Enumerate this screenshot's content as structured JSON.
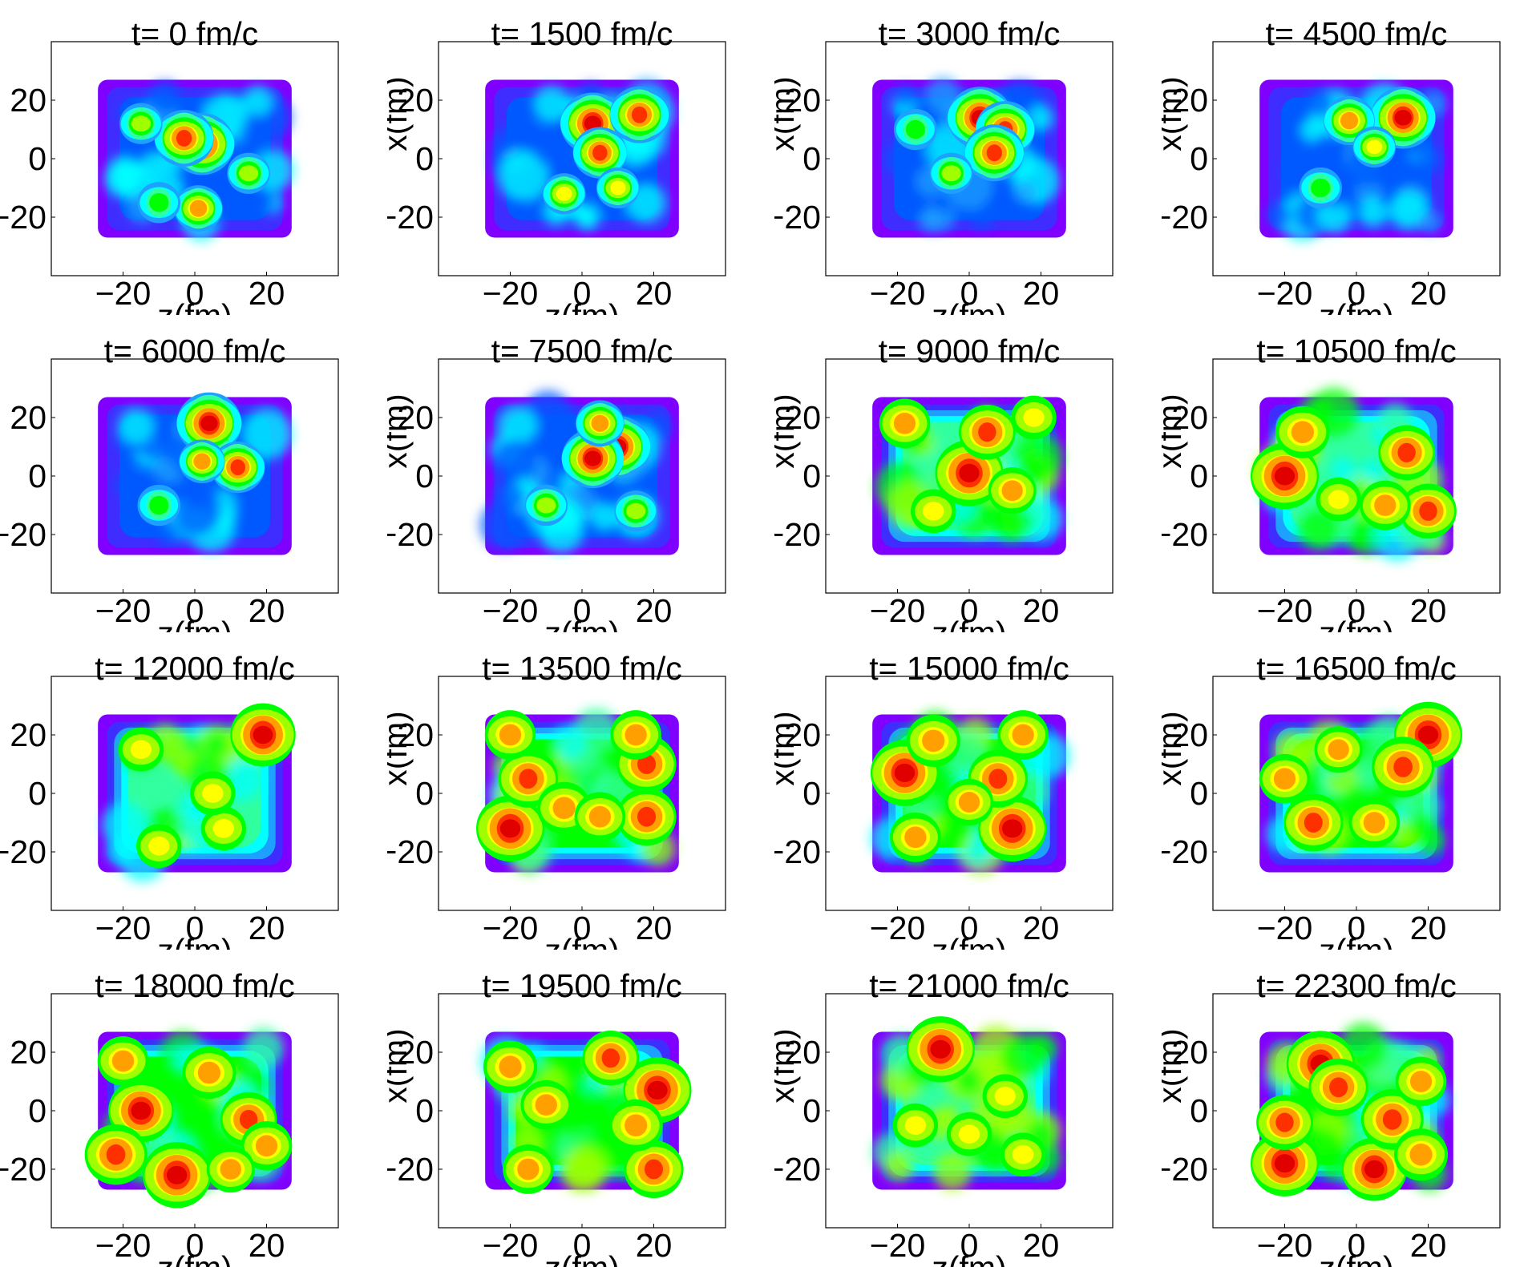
{
  "chart_data": [
    {
      "type": "heatmap",
      "title": "t= 0 fm/c",
      "xlabel": "z(fm)",
      "ylabel": "",
      "xlim": [
        -40,
        40
      ],
      "ylim": [
        -40,
        40
      ],
      "xticks": [
        "−20",
        "0",
        "20"
      ],
      "yticks": [
        "20",
        "0",
        "−20"
      ],
      "hotspots": [
        {
          "x": 2,
          "y": 5,
          "v": 1.0
        },
        {
          "x": -3,
          "y": 7,
          "v": 0.9
        },
        {
          "x": 1,
          "y": -17,
          "v": 0.7
        },
        {
          "x": -15,
          "y": 12,
          "v": 0.4
        },
        {
          "x": 15,
          "y": -5,
          "v": 0.4
        },
        {
          "x": -10,
          "y": -15,
          "v": 0.35
        }
      ]
    },
    {
      "type": "heatmap",
      "title": "t= 1500 fm/c",
      "xlabel": "z(fm)",
      "ylabel": "x(fm)",
      "xlim": [
        -40,
        40
      ],
      "ylim": [
        -40,
        40
      ],
      "xticks": [
        "−20",
        "0",
        "20"
      ],
      "yticks": [
        "20",
        "0",
        "−20"
      ],
      "hotspots": [
        {
          "x": 3,
          "y": 12,
          "v": 1.0
        },
        {
          "x": 16,
          "y": 15,
          "v": 0.9
        },
        {
          "x": 5,
          "y": 2,
          "v": 0.8
        },
        {
          "x": 10,
          "y": -10,
          "v": 0.6
        },
        {
          "x": -5,
          "y": -12,
          "v": 0.5
        }
      ]
    },
    {
      "type": "heatmap",
      "title": "t= 3000 fm/c",
      "xlabel": "z(fm)",
      "ylabel": "x(fm)",
      "xlim": [
        -40,
        40
      ],
      "ylim": [
        -40,
        40
      ],
      "xticks": [
        "−20",
        "0",
        "20"
      ],
      "yticks": [
        "20",
        "0",
        "−20"
      ],
      "hotspots": [
        {
          "x": 3,
          "y": 14,
          "v": 1.0
        },
        {
          "x": 10,
          "y": 10,
          "v": 0.9
        },
        {
          "x": 7,
          "y": 2,
          "v": 0.9
        },
        {
          "x": -5,
          "y": -5,
          "v": 0.45
        },
        {
          "x": -15,
          "y": 10,
          "v": 0.35
        }
      ]
    },
    {
      "type": "heatmap",
      "title": "t= 4500 fm/c",
      "xlabel": "z(fm)",
      "ylabel": "x(fm)",
      "xlim": [
        -40,
        40
      ],
      "ylim": [
        -40,
        40
      ],
      "xticks": [
        "−20",
        "0",
        "20"
      ],
      "yticks": [
        "20",
        "0",
        "−20"
      ],
      "hotspots": [
        {
          "x": 13,
          "y": 14,
          "v": 1.0
        },
        {
          "x": -2,
          "y": 13,
          "v": 0.75
        },
        {
          "x": 5,
          "y": 4,
          "v": 0.55
        },
        {
          "x": -10,
          "y": -10,
          "v": 0.3
        }
      ]
    },
    {
      "type": "heatmap",
      "title": "t= 6000 fm/c",
      "xlabel": "z(fm)",
      "ylabel": "",
      "xlim": [
        -40,
        40
      ],
      "ylim": [
        -40,
        40
      ],
      "xticks": [
        "−20",
        "0",
        "20"
      ],
      "yticks": [
        "20",
        "0",
        "−20"
      ],
      "hotspots": [
        {
          "x": 4,
          "y": 18,
          "v": 1.0
        },
        {
          "x": 12,
          "y": 3,
          "v": 0.8
        },
        {
          "x": 2,
          "y": 5,
          "v": 0.65
        },
        {
          "x": -10,
          "y": -10,
          "v": 0.3
        }
      ]
    },
    {
      "type": "heatmap",
      "title": "t= 7500 fm/c",
      "xlabel": "z(fm)",
      "ylabel": "x(fm)",
      "xlim": [
        -40,
        40
      ],
      "ylim": [
        -40,
        40
      ],
      "xticks": [
        "−20",
        "0",
        "20"
      ],
      "yticks": [
        "20",
        "0",
        "−20"
      ],
      "hotspots": [
        {
          "x": 10,
          "y": 10,
          "v": 1.0
        },
        {
          "x": 3,
          "y": 6,
          "v": 0.95
        },
        {
          "x": 5,
          "y": 18,
          "v": 0.7
        },
        {
          "x": -10,
          "y": -10,
          "v": 0.4
        },
        {
          "x": 15,
          "y": -12,
          "v": 0.45
        }
      ]
    },
    {
      "type": "heatmap",
      "title": "t= 9000 fm/c",
      "xlabel": "z(fm)",
      "ylabel": "x(fm)",
      "xlim": [
        -40,
        40
      ],
      "ylim": [
        -40,
        40
      ],
      "xticks": [
        "−20",
        "0",
        "20"
      ],
      "yticks": [
        "20",
        "0",
        "−20"
      ],
      "hotspots": [
        {
          "x": 0,
          "y": 1,
          "v": 1.0
        },
        {
          "x": 5,
          "y": 15,
          "v": 0.8
        },
        {
          "x": -18,
          "y": 18,
          "v": 0.7
        },
        {
          "x": 12,
          "y": -5,
          "v": 0.65
        },
        {
          "x": -10,
          "y": -12,
          "v": 0.6
        },
        {
          "x": 18,
          "y": 20,
          "v": 0.6
        }
      ]
    },
    {
      "type": "heatmap",
      "title": "t= 10500 fm/c",
      "xlabel": "z(fm)",
      "ylabel": "x(fm)",
      "xlim": [
        -40,
        40
      ],
      "ylim": [
        -40,
        40
      ],
      "xticks": [
        "−20",
        "0",
        "20"
      ],
      "yticks": [
        "20",
        "0",
        "−20"
      ],
      "hotspots": [
        {
          "x": -20,
          "y": 0,
          "v": 1.0
        },
        {
          "x": 14,
          "y": 8,
          "v": 0.8
        },
        {
          "x": 20,
          "y": -12,
          "v": 0.8
        },
        {
          "x": -15,
          "y": 15,
          "v": 0.75
        },
        {
          "x": 8,
          "y": -10,
          "v": 0.7
        },
        {
          "x": -5,
          "y": -8,
          "v": 0.6
        }
      ]
    },
    {
      "type": "heatmap",
      "title": "t= 12000 fm/c",
      "xlabel": "z(fm)",
      "ylabel": "",
      "xlim": [
        -40,
        40
      ],
      "ylim": [
        -40,
        40
      ],
      "xticks": [
        "−20",
        "0",
        "20"
      ],
      "yticks": [
        "20",
        "0",
        "−20"
      ],
      "hotspots": [
        {
          "x": 19,
          "y": 20,
          "v": 0.95
        },
        {
          "x": -10,
          "y": -18,
          "v": 0.6
        },
        {
          "x": 8,
          "y": -12,
          "v": 0.6
        },
        {
          "x": -15,
          "y": 15,
          "v": 0.55
        },
        {
          "x": 5,
          "y": 0,
          "v": 0.5
        }
      ]
    },
    {
      "type": "heatmap",
      "title": "t= 13500 fm/c",
      "xlabel": "z(fm)",
      "ylabel": "x(fm)",
      "xlim": [
        -40,
        40
      ],
      "ylim": [
        -40,
        40
      ],
      "xticks": [
        "−20",
        "0",
        "20"
      ],
      "yticks": [
        "20",
        "0",
        "−20"
      ],
      "hotspots": [
        {
          "x": -20,
          "y": -12,
          "v": 1.0
        },
        {
          "x": 18,
          "y": 10,
          "v": 0.85
        },
        {
          "x": -15,
          "y": 5,
          "v": 0.85
        },
        {
          "x": 18,
          "y": -8,
          "v": 0.85
        },
        {
          "x": -5,
          "y": -5,
          "v": 0.75
        },
        {
          "x": 15,
          "y": 20,
          "v": 0.7
        },
        {
          "x": 5,
          "y": -8,
          "v": 0.7
        },
        {
          "x": -20,
          "y": 20,
          "v": 0.7
        }
      ]
    },
    {
      "type": "heatmap",
      "title": "t= 15000 fm/c",
      "xlabel": "z(fm)",
      "ylabel": "x(fm)",
      "xlim": [
        -40,
        40
      ],
      "ylim": [
        -40,
        40
      ],
      "xticks": [
        "−20",
        "0",
        "20"
      ],
      "yticks": [
        "20",
        "0",
        "−20"
      ],
      "hotspots": [
        {
          "x": -18,
          "y": 7,
          "v": 1.0
        },
        {
          "x": 12,
          "y": -12,
          "v": 1.0
        },
        {
          "x": 8,
          "y": 5,
          "v": 0.85
        },
        {
          "x": -10,
          "y": 18,
          "v": 0.75
        },
        {
          "x": -15,
          "y": -15,
          "v": 0.7
        },
        {
          "x": 15,
          "y": 20,
          "v": 0.7
        },
        {
          "x": 0,
          "y": -3,
          "v": 0.65
        }
      ]
    },
    {
      "type": "heatmap",
      "title": "t= 16500 fm/c",
      "xlabel": "z(fm)",
      "ylabel": "x(fm)",
      "xlim": [
        -40,
        40
      ],
      "ylim": [
        -40,
        40
      ],
      "xticks": [
        "−20",
        "0",
        "20"
      ],
      "yticks": [
        "20",
        "0",
        "−20"
      ],
      "hotspots": [
        {
          "x": 20,
          "y": 20,
          "v": 1.0
        },
        {
          "x": 13,
          "y": 9,
          "v": 0.9
        },
        {
          "x": -12,
          "y": -10,
          "v": 0.85
        },
        {
          "x": -20,
          "y": 5,
          "v": 0.7
        },
        {
          "x": 5,
          "y": -10,
          "v": 0.7
        },
        {
          "x": -5,
          "y": 15,
          "v": 0.65
        }
      ]
    },
    {
      "type": "heatmap",
      "title": "t= 18000 fm/c",
      "xlabel": "z(fm)",
      "ylabel": "",
      "xlim": [
        -40,
        40
      ],
      "ylim": [
        -40,
        40
      ],
      "xticks": [
        "−20",
        "0",
        "20"
      ],
      "yticks": [
        "20",
        "0",
        "−20"
      ],
      "hotspots": [
        {
          "x": -5,
          "y": -22,
          "v": 1.0
        },
        {
          "x": -15,
          "y": 0,
          "v": 0.95
        },
        {
          "x": -22,
          "y": -15,
          "v": 0.9
        },
        {
          "x": 15,
          "y": -3,
          "v": 0.8
        },
        {
          "x": 4,
          "y": 13,
          "v": 0.75
        },
        {
          "x": 20,
          "y": -12,
          "v": 0.7
        },
        {
          "x": -20,
          "y": 17,
          "v": 0.7
        },
        {
          "x": 10,
          "y": -20,
          "v": 0.65
        }
      ]
    },
    {
      "type": "heatmap",
      "title": "t= 19500 fm/c",
      "xlabel": "z(fm)",
      "ylabel": "x(fm)",
      "xlim": [
        -40,
        40
      ],
      "ylim": [
        -40,
        40
      ],
      "xticks": [
        "−20",
        "0",
        "20"
      ],
      "yticks": [
        "20",
        "0",
        "−20"
      ],
      "hotspots": [
        {
          "x": 21,
          "y": 7,
          "v": 1.0
        },
        {
          "x": 20,
          "y": -20,
          "v": 0.85
        },
        {
          "x": 8,
          "y": 18,
          "v": 0.8
        },
        {
          "x": 15,
          "y": -5,
          "v": 0.75
        },
        {
          "x": -20,
          "y": 15,
          "v": 0.75
        },
        {
          "x": -15,
          "y": -20,
          "v": 0.7
        },
        {
          "x": -10,
          "y": 2,
          "v": 0.7
        }
      ]
    },
    {
      "type": "heatmap",
      "title": "t= 21000 fm/c",
      "xlabel": "z(fm)",
      "ylabel": "x(fm)",
      "xlim": [
        -40,
        40
      ],
      "ylim": [
        -40,
        40
      ],
      "xticks": [
        "−20",
        "0",
        "20"
      ],
      "yticks": [
        "20",
        "0",
        "−20"
      ],
      "hotspots": [
        {
          "x": -8,
          "y": 21,
          "v": 1.0
        },
        {
          "x": 10,
          "y": 5,
          "v": 0.6
        },
        {
          "x": -15,
          "y": -5,
          "v": 0.55
        },
        {
          "x": 15,
          "y": -15,
          "v": 0.55
        },
        {
          "x": 0,
          "y": -8,
          "v": 0.5
        }
      ]
    },
    {
      "type": "heatmap",
      "title": "t= 22300 fm/c",
      "xlabel": "z(fm)",
      "ylabel": "x(fm)",
      "xlim": [
        -40,
        40
      ],
      "ylim": [
        -40,
        40
      ],
      "xticks": [
        "−20",
        "0",
        "20"
      ],
      "yticks": [
        "20",
        "0",
        "−20"
      ],
      "hotspots": [
        {
          "x": -10,
          "y": 16,
          "v": 1.0
        },
        {
          "x": -20,
          "y": -18,
          "v": 1.0
        },
        {
          "x": 5,
          "y": -20,
          "v": 0.95
        },
        {
          "x": 10,
          "y": -3,
          "v": 0.9
        },
        {
          "x": -5,
          "y": 8,
          "v": 0.85
        },
        {
          "x": -20,
          "y": -4,
          "v": 0.8
        },
        {
          "x": 18,
          "y": -15,
          "v": 0.75
        },
        {
          "x": 18,
          "y": 10,
          "v": 0.7
        }
      ]
    }
  ]
}
